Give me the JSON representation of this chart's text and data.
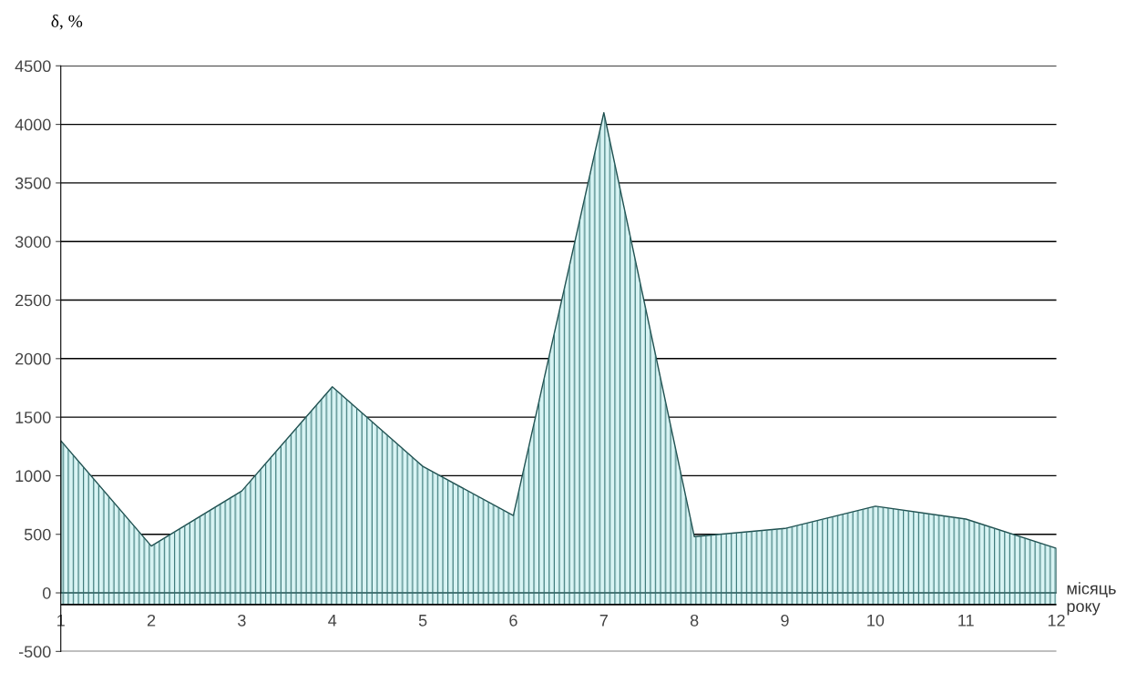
{
  "chart_data": {
    "type": "area",
    "ylabel": "δ, %",
    "xlabel": "місяць\nроку",
    "x": [
      1,
      2,
      3,
      4,
      5,
      6,
      7,
      8,
      9,
      10,
      11,
      12
    ],
    "series": [
      {
        "color": "#d8f4f4",
        "values": [
          1300,
          400,
          870,
          1760,
          1080,
          660,
          4100,
          480,
          550,
          740,
          630,
          380
        ]
      }
    ],
    "xlim": [
      1,
      12
    ],
    "xticks": [
      1,
      2,
      3,
      4,
      5,
      6,
      7,
      8,
      9,
      10,
      11,
      12
    ],
    "ylim": [
      -500,
      4500
    ],
    "yticks": [
      -500,
      0,
      500,
      1000,
      1500,
      2000,
      2500,
      3000,
      3500,
      4000,
      4500
    ],
    "ref_lines": [
      {
        "axis": "y",
        "value": -100
      }
    ],
    "bands": [
      {
        "axis": "y",
        "from": -100,
        "to": 0,
        "color": "#d8f4f4"
      }
    ],
    "grid": "y"
  }
}
